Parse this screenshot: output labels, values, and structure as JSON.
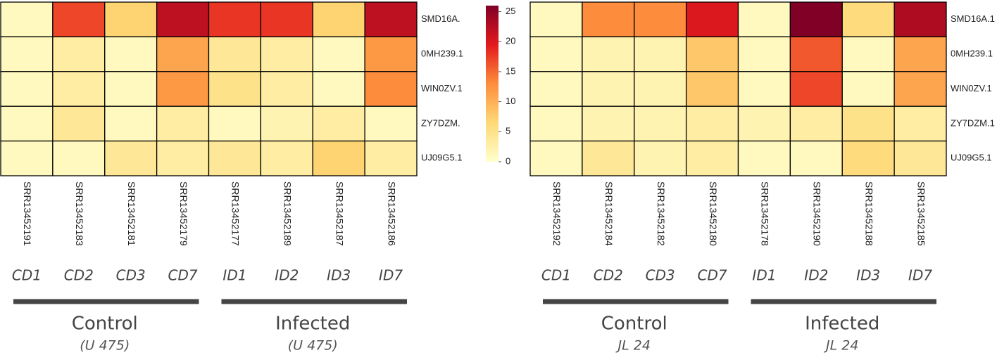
{
  "chart_data": [
    {
      "type": "heatmap",
      "rows": [
        "SMD16A.",
        "0MH239.1",
        "WIN0ZV.1",
        "ZY7DZM.",
        "UJ09G5.1"
      ],
      "columns": [
        "SRR13452191",
        "SRR13452183",
        "SRR13452181",
        "SRR13452179",
        "SRR13452177",
        "SRR13452189",
        "SRR13452187",
        "SRR13452186"
      ],
      "conditions": [
        "CD1",
        "CD2",
        "CD3",
        "CD7",
        "ID1",
        "ID2",
        "ID3",
        "ID7"
      ],
      "groups": [
        {
          "name": "Control",
          "subtitle": "(U 475)"
        },
        {
          "name": "Infected",
          "subtitle": "(U 475)"
        }
      ],
      "values": [
        [
          1,
          17,
          7,
          22,
          18,
          18,
          7,
          22
        ],
        [
          1,
          3,
          1,
          11,
          4,
          3,
          1,
          12
        ],
        [
          1,
          3,
          1,
          12,
          5,
          3,
          1,
          13
        ],
        [
          1,
          4,
          1,
          3,
          1,
          2,
          3,
          1
        ],
        [
          1,
          1,
          4,
          3,
          4,
          3,
          7,
          3
        ]
      ],
      "zlim": [
        0,
        26
      ],
      "zticks": [
        0,
        5,
        10,
        15,
        20,
        25
      ],
      "colormap": [
        "#ffffcc",
        "#fed976",
        "#fd8d3c",
        "#e31a1c",
        "#800026"
      ],
      "colorbar": true
    },
    {
      "type": "heatmap",
      "rows": [
        "SMD16A.1",
        "0MH239.1",
        "WIN0ZV.1",
        "ZY7DZM.1",
        "UJ09G5.1"
      ],
      "columns": [
        "SRR13452192",
        "SRR13452184",
        "SRR13452182",
        "SRR13452180",
        "SRR13452178",
        "SRR13452190",
        "SRR13452188",
        "SRR13452185"
      ],
      "conditions": [
        "CD1",
        "CD2",
        "CD3",
        "CD7",
        "ID1",
        "ID2",
        "ID3",
        "ID7"
      ],
      "groups": [
        {
          "name": "Control",
          "subtitle": "JL 24"
        },
        {
          "name": "Infected",
          "subtitle": "JL 24"
        }
      ],
      "values": [
        [
          1,
          13,
          13,
          20,
          1,
          26,
          6,
          23
        ],
        [
          1,
          2,
          2,
          8,
          1,
          16,
          1,
          11
        ],
        [
          1,
          2,
          2,
          8,
          1,
          17,
          1,
          11
        ],
        [
          1,
          2,
          2,
          3,
          2,
          3,
          5,
          3
        ],
        [
          1,
          4,
          2,
          3,
          1,
          1,
          6,
          4
        ]
      ],
      "zlim": [
        0,
        26
      ],
      "colormap": [
        "#ffffcc",
        "#fed976",
        "#fd8d3c",
        "#e31a1c",
        "#800026"
      ],
      "colorbar": false
    }
  ]
}
